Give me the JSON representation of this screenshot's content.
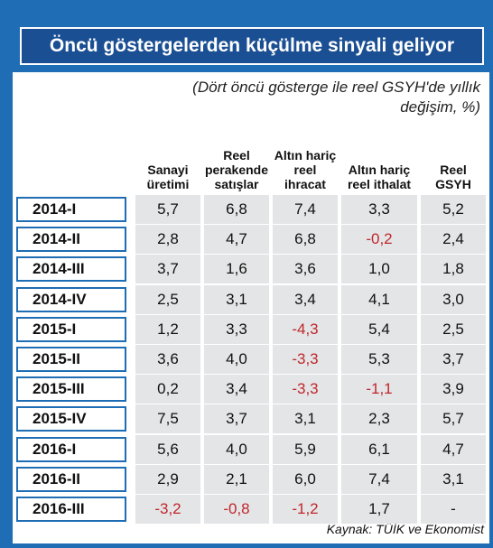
{
  "title": "Öncü göstergelerden küçülme sinyali geliyor",
  "subtitle": "(Dört öncü gösterge ile reel GSYH'de yıllık değişim, %)",
  "table": {
    "columns": [
      "Sanayi üretimi",
      "Reel perakende satışlar",
      "Altın hariç reel ihracat",
      "Altın hariç reel ithalat",
      "Reel GSYH"
    ],
    "rows": [
      [
        "2014-I",
        "5,7",
        "6,8",
        "7,4",
        "3,3",
        "5,2"
      ],
      [
        "2014-II",
        "2,8",
        "4,7",
        "6,8",
        "-0,2",
        "2,4"
      ],
      [
        "2014-III",
        "3,7",
        "1,6",
        "3,6",
        "1,0",
        "1,8"
      ],
      [
        "2014-IV",
        "2,5",
        "3,1",
        "3,4",
        "4,1",
        "3,0"
      ],
      [
        "2015-I",
        "1,2",
        "3,3",
        "-4,3",
        "5,4",
        "2,5"
      ],
      [
        "2015-II",
        "3,6",
        "4,0",
        "-3,3",
        "5,3",
        "3,7"
      ],
      [
        "2015-III",
        "0,2",
        "3,4",
        "-3,3",
        "-1,1",
        "3,9"
      ],
      [
        "2015-IV",
        "7,5",
        "3,7",
        "3,1",
        "2,3",
        "5,7"
      ],
      [
        "2016-I",
        "5,6",
        "4,0",
        "5,9",
        "6,1",
        "4,7"
      ],
      [
        "2016-II",
        "2,9",
        "2,1",
        "6,0",
        "7,4",
        "3,1"
      ],
      [
        "2016-III",
        "-3,2",
        "-0,8",
        "-1,2",
        "1,7",
        "-"
      ]
    ]
  },
  "source": "Kaynak: TÜİK ve Ekonomist"
}
